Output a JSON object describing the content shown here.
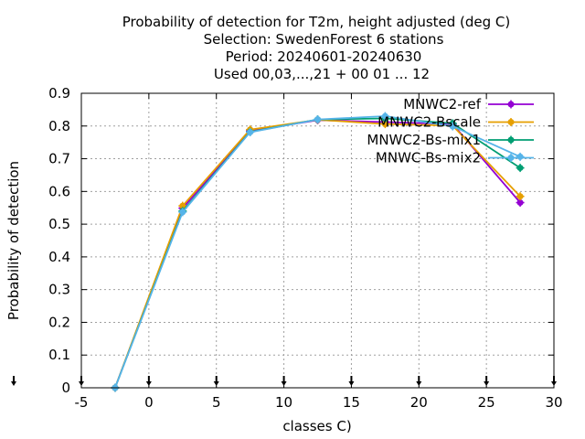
{
  "chart_data": {
    "type": "line",
    "title_lines": [
      "Probability of detection  for T2m, height adjusted (deg C)",
      "Selection: SwedenForest      6 stations",
      "Period: 20240601-20240630",
      "Used 00,03,...,21 + 00 01 ... 12"
    ],
    "xlabel": "classes C)",
    "ylabel": "Probability of detection",
    "xlim": [
      -5,
      30
    ],
    "ylim": [
      0,
      0.9
    ],
    "xticks": [
      -5,
      0,
      5,
      10,
      15,
      20,
      25,
      30
    ],
    "xtick_labels": [
      "-5",
      "0",
      "5",
      "10",
      "15",
      "20",
      "25",
      "30"
    ],
    "yticks": [
      0,
      0.1,
      0.2,
      0.3,
      0.4,
      0.5,
      0.6,
      0.7,
      0.8,
      0.9
    ],
    "ytick_labels": [
      "0",
      "0.1",
      "0.2",
      "0.3",
      "0.4",
      "0.5",
      "0.6",
      "0.7",
      "0.8",
      "0.9"
    ],
    "grid": true,
    "legend_position": "top-right",
    "x": [
      -2.5,
      2.5,
      7.5,
      12.5,
      17.5,
      22.5,
      27.5
    ],
    "series": [
      {
        "name": "MNWC2-ref",
        "color": "#9400d3",
        "values": [
          0.0,
          0.549,
          0.785,
          0.818,
          0.812,
          0.806,
          0.566
        ]
      },
      {
        "name": "MNWC2-Bscale",
        "color": "#e69f00",
        "values": [
          0.0,
          0.556,
          0.789,
          0.819,
          0.806,
          0.801,
          0.585
        ]
      },
      {
        "name": "MNWC2-Bs-mix1",
        "color": "#009e73",
        "values": [
          0.0,
          0.54,
          0.782,
          0.82,
          0.823,
          0.808,
          0.672
        ]
      },
      {
        "name": "MNWC-Bs-mix2",
        "color": "#56b4e9",
        "values": [
          0.0,
          0.537,
          0.781,
          0.82,
          0.83,
          0.799,
          0.706
        ]
      }
    ]
  }
}
